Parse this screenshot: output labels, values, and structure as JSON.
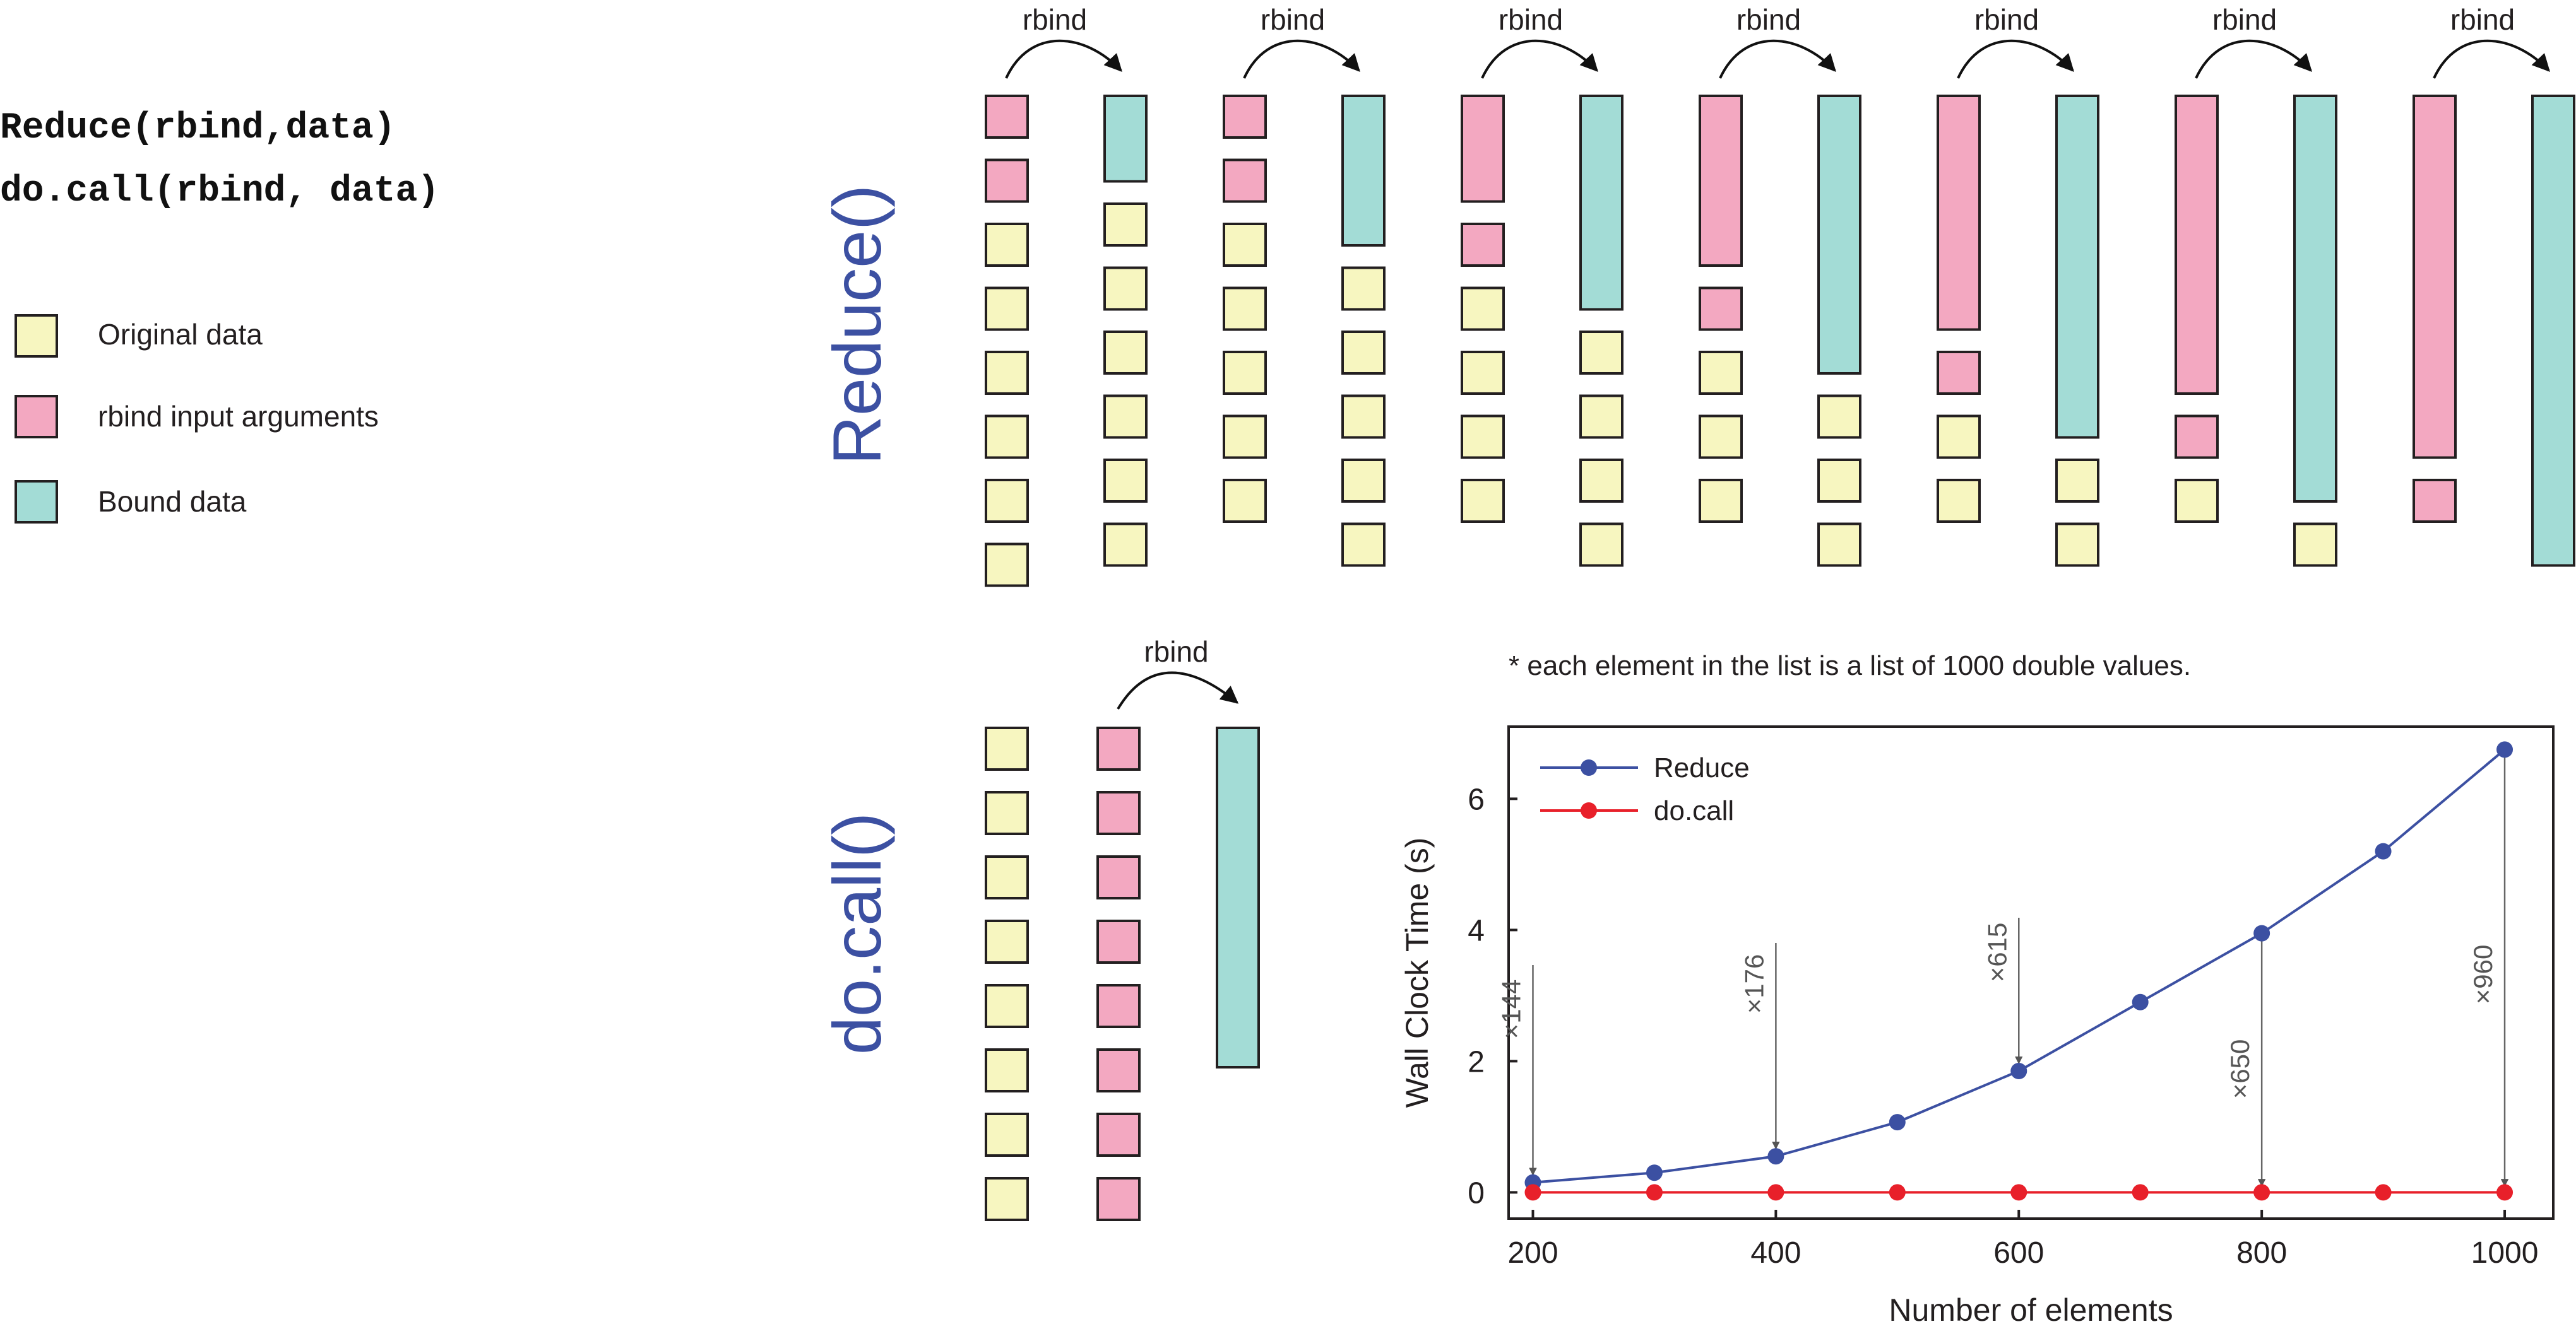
{
  "code": {
    "line1": "Reduce(rbind,data)",
    "line2": "do.call(rbind, data)"
  },
  "legend": [
    {
      "label": "Original data",
      "color": "#f7f6c0"
    },
    {
      "label": "rbind input arguments",
      "color": "#f3a8c1"
    },
    {
      "label": "Bound data",
      "color": "#a3dcd6"
    }
  ],
  "colors": {
    "original": "#f7f6c0",
    "input": "#f3a8c1",
    "bound": "#a3dcd6",
    "reduce_series": "#3c50a2",
    "docall_series": "#e8202a"
  },
  "reduce_section": {
    "label": "Reduce()",
    "step_label": "rbind",
    "steps": 7,
    "list_length": 8
  },
  "docall_section": {
    "label": "do.call()",
    "step_label": "rbind",
    "list_length": 8
  },
  "note": "* each element in the list is a list of 1000 double values.",
  "chart_data": {
    "type": "line",
    "xlabel": "Number of elements",
    "ylabel": "Wall Clock Time (s)",
    "x": [
      200,
      300,
      400,
      500,
      600,
      700,
      800,
      900,
      1000
    ],
    "xlim": [
      180,
      1040
    ],
    "ylim": [
      -0.4,
      7.1
    ],
    "xticks": [
      "200",
      "400",
      "600",
      "800",
      "1000"
    ],
    "yticks": [
      "0",
      "2",
      "4",
      "6"
    ],
    "legend_position": "top-left",
    "series": [
      {
        "name": "Reduce",
        "values": [
          0.15,
          0.3,
          0.55,
          1.07,
          1.85,
          2.9,
          3.95,
          5.2,
          6.75
        ]
      },
      {
        "name": "do.call",
        "values": [
          0.0,
          0.0,
          0.0,
          0.0,
          0.0,
          0.0,
          0.0,
          0.0,
          0.0
        ]
      }
    ],
    "annotations": [
      {
        "x": 200,
        "y": 0.15,
        "text": "×144"
      },
      {
        "x": 400,
        "y": 0.55,
        "text": "×176"
      },
      {
        "x": 600,
        "y": 1.85,
        "text": "×615"
      },
      {
        "x": 800,
        "y": 3.95,
        "text": "×650"
      },
      {
        "x": 1000,
        "y": 6.75,
        "text": "×960"
      }
    ]
  }
}
